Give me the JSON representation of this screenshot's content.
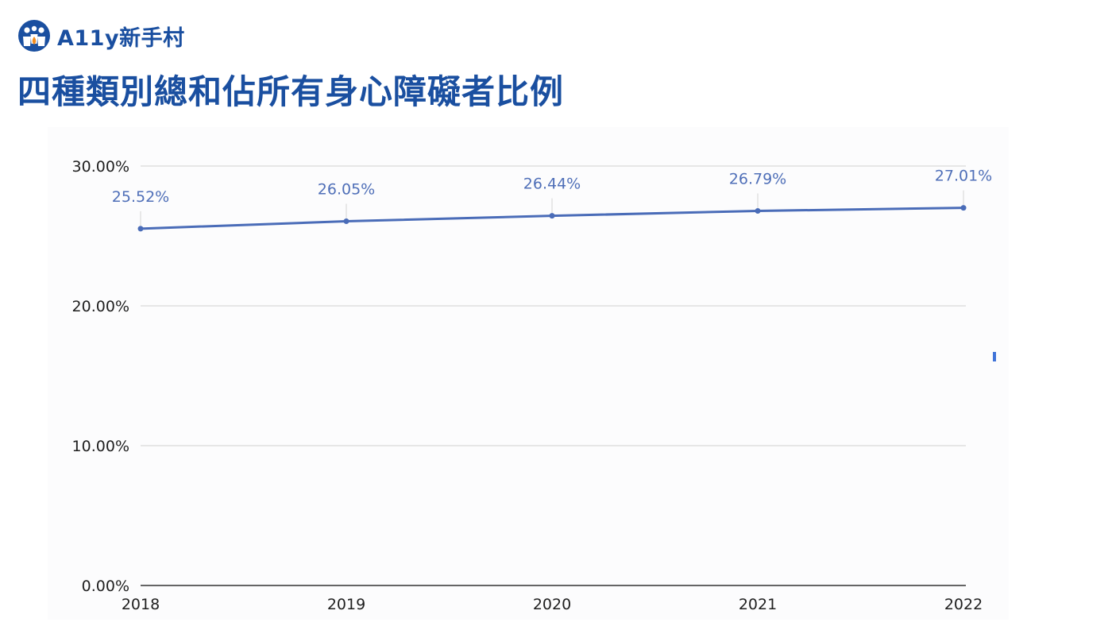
{
  "brand": {
    "name": "A11y新手村",
    "icon": "people-logo-icon",
    "color": "#1a4fa0"
  },
  "page": {
    "title": "四種類別總和佔所有身心障礙者比例"
  },
  "chart_data": {
    "type": "line",
    "title": "",
    "xlabel": "",
    "ylabel": "",
    "categories": [
      "2018",
      "2019",
      "2020",
      "2021",
      "2022"
    ],
    "series": [
      {
        "values": [
          25.52,
          26.05,
          26.44,
          26.79,
          27.01
        ],
        "labels": [
          "25.52%",
          "26.05%",
          "26.44%",
          "26.79%",
          "27.01%"
        ],
        "color": "#4a6cb8"
      }
    ],
    "ylim": [
      0,
      30
    ],
    "yticks": [
      0,
      10,
      20,
      30
    ],
    "ytick_labels": [
      "0.00%",
      "10.00%",
      "20.00%",
      "30.00%"
    ],
    "grid": true,
    "legend": "none"
  }
}
